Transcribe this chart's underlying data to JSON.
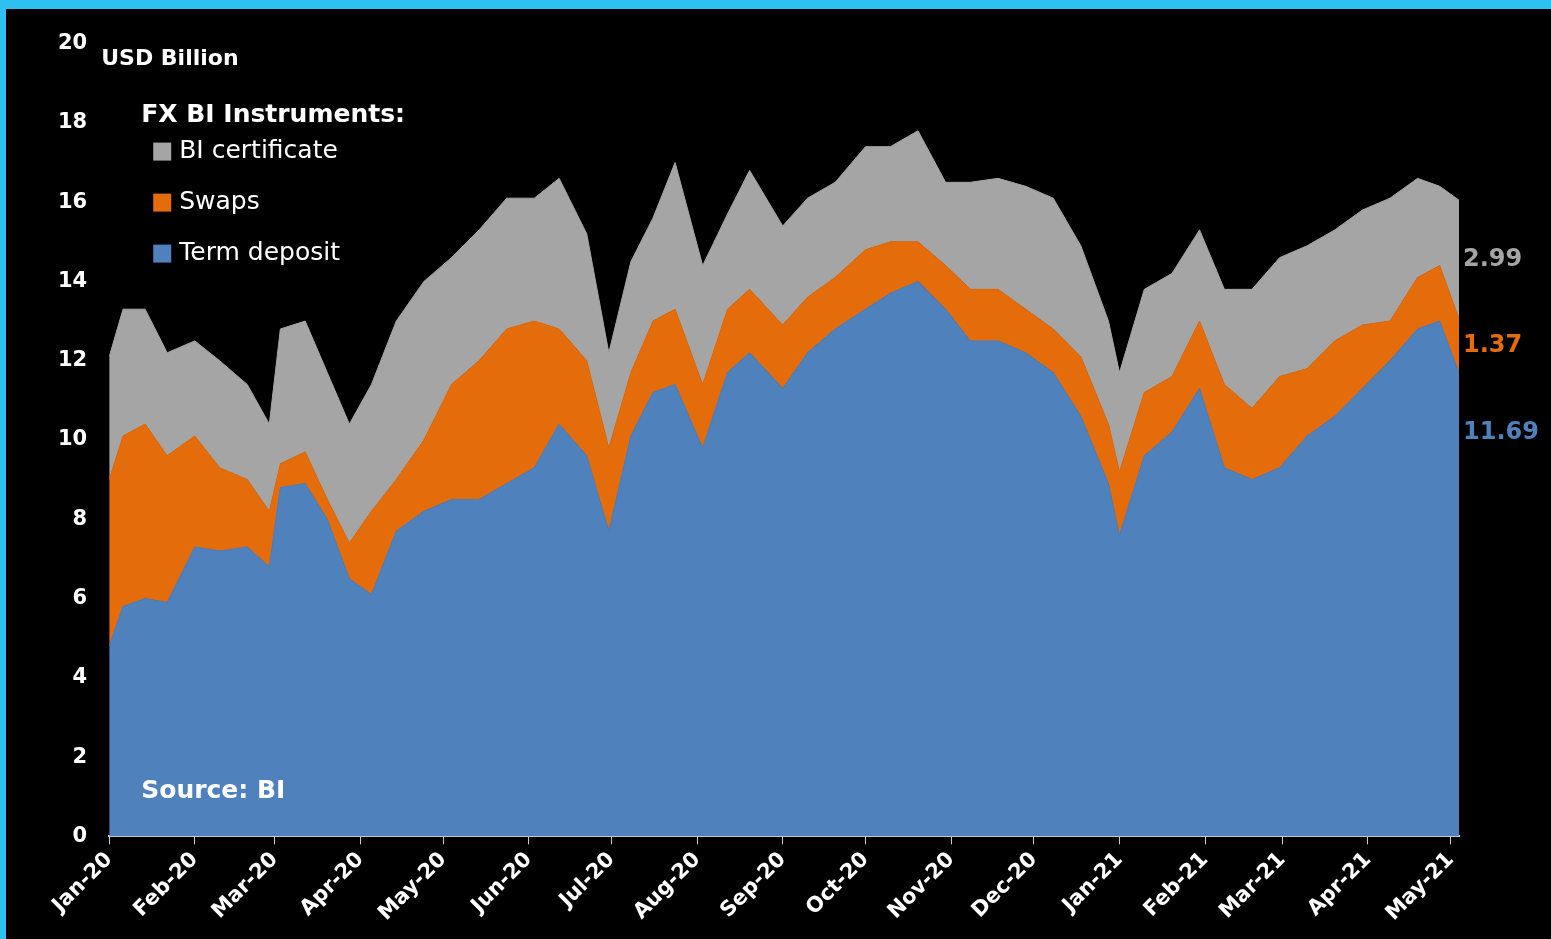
{
  "chart_data": {
    "type": "area",
    "stacked": true,
    "ylabel": "USD Billion",
    "legend_title": "FX BI Instruments:",
    "legend": "top left",
    "grid": false,
    "annotations": [
      "Source: BI"
    ],
    "xlim": [
      "2020-01-01",
      "2021-05-04"
    ],
    "ylim": [
      0,
      20
    ],
    "yticks": [
      0,
      2,
      4,
      6,
      8,
      10,
      12,
      14,
      16,
      18,
      20
    ],
    "xticks": [
      {
        "value": "2020-01-01",
        "label": "Jan-20"
      },
      {
        "value": "2020-02-01",
        "label": "Feb-20"
      },
      {
        "value": "2020-03-01",
        "label": "Mar-20"
      },
      {
        "value": "2020-04-01",
        "label": "Apr-20"
      },
      {
        "value": "2020-05-01",
        "label": "May-20"
      },
      {
        "value": "2020-06-01",
        "label": "Jun-20"
      },
      {
        "value": "2020-07-01",
        "label": "Jul-20"
      },
      {
        "value": "2020-08-01",
        "label": "Aug-20"
      },
      {
        "value": "2020-09-01",
        "label": "Sep-20"
      },
      {
        "value": "2020-10-01",
        "label": "Oct-20"
      },
      {
        "value": "2020-11-01",
        "label": "Nov-20"
      },
      {
        "value": "2020-12-01",
        "label": "Dec-20"
      },
      {
        "value": "2021-01-01",
        "label": "Jan-21"
      },
      {
        "value": "2021-02-01",
        "label": "Feb-21"
      },
      {
        "value": "2021-03-01",
        "label": "Mar-21"
      },
      {
        "value": "2021-04-01",
        "label": "Apr-21"
      },
      {
        "value": "2021-05-01",
        "label": "May-21"
      }
    ],
    "x": [
      "2020-01-01",
      "2020-01-06",
      "2020-01-14",
      "2020-01-22",
      "2020-02-01",
      "2020-02-10",
      "2020-02-20",
      "2020-02-28",
      "2020-03-03",
      "2020-03-12",
      "2020-03-20",
      "2020-03-28",
      "2020-04-05",
      "2020-04-14",
      "2020-04-24",
      "2020-05-04",
      "2020-05-14",
      "2020-05-24",
      "2020-06-03",
      "2020-06-12",
      "2020-06-22",
      "2020-06-30",
      "2020-07-08",
      "2020-07-16",
      "2020-07-24",
      "2020-08-03",
      "2020-08-12",
      "2020-08-20",
      "2020-09-01",
      "2020-09-10",
      "2020-09-20",
      "2020-10-01",
      "2020-10-10",
      "2020-10-20",
      "2020-10-30",
      "2020-11-08",
      "2020-11-18",
      "2020-11-28",
      "2020-12-08",
      "2020-12-18",
      "2020-12-28",
      "2021-01-01",
      "2021-01-10",
      "2021-01-20",
      "2021-01-30",
      "2021-02-08",
      "2021-02-18",
      "2021-02-28",
      "2021-03-10",
      "2021-03-20",
      "2021-03-30",
      "2021-04-09",
      "2021-04-19",
      "2021-04-27",
      "2021-05-04"
    ],
    "series": [
      {
        "name": "Term deposit",
        "color": "#4f81bd",
        "values": [
          4.8,
          5.8,
          6.0,
          5.9,
          7.3,
          7.2,
          7.3,
          6.8,
          8.8,
          8.9,
          8.0,
          6.5,
          6.1,
          7.7,
          8.2,
          8.5,
          8.5,
          8.9,
          9.3,
          10.4,
          9.6,
          7.7,
          10.1,
          11.2,
          11.4,
          9.8,
          11.7,
          12.2,
          11.3,
          12.2,
          12.8,
          13.3,
          13.7,
          14.0,
          13.3,
          12.5,
          12.5,
          12.2,
          11.7,
          10.6,
          8.9,
          7.6,
          9.6,
          10.2,
          11.3,
          9.3,
          9.0,
          9.3,
          10.1,
          10.6,
          11.3,
          12.0,
          12.8,
          13.0,
          11.69
        ],
        "value_labels": [
          null,
          null,
          null,
          null,
          null,
          null,
          null,
          null,
          null,
          null,
          null,
          null,
          null,
          null,
          null,
          null,
          null,
          null,
          null,
          null,
          null,
          null,
          null,
          null,
          null,
          null,
          null,
          null,
          null,
          null,
          null,
          null,
          null,
          null,
          null,
          null,
          null,
          null,
          null,
          null,
          null,
          null,
          null,
          null,
          null,
          null,
          null,
          null,
          null,
          null,
          null,
          null,
          null,
          null,
          "11.69"
        ]
      },
      {
        "name": "Swaps",
        "color": "#e46c0a",
        "values": [
          4.2,
          4.3,
          4.4,
          3.7,
          2.8,
          2.1,
          1.7,
          1.4,
          0.6,
          0.8,
          0.5,
          0.9,
          2.1,
          1.3,
          1.8,
          2.9,
          3.5,
          3.9,
          3.7,
          2.4,
          2.4,
          2.1,
          1.6,
          1.8,
          1.9,
          1.6,
          1.6,
          1.6,
          1.6,
          1.4,
          1.3,
          1.5,
          1.3,
          1.0,
          1.1,
          1.3,
          1.3,
          1.1,
          1.1,
          1.5,
          1.5,
          1.6,
          1.6,
          1.4,
          1.7,
          2.1,
          1.8,
          2.3,
          1.7,
          1.9,
          1.6,
          1.0,
          1.3,
          1.4,
          1.37
        ],
        "value_labels": [
          null,
          null,
          null,
          null,
          null,
          null,
          null,
          null,
          null,
          null,
          null,
          null,
          null,
          null,
          null,
          null,
          null,
          null,
          null,
          null,
          null,
          null,
          null,
          null,
          null,
          null,
          null,
          null,
          null,
          null,
          null,
          null,
          null,
          null,
          null,
          null,
          null,
          null,
          null,
          null,
          null,
          null,
          null,
          null,
          null,
          null,
          null,
          null,
          null,
          null,
          null,
          null,
          null,
          null,
          "1.37"
        ]
      },
      {
        "name": "BI certificate",
        "color": "#a5a5a5",
        "values": [
          3.1,
          3.2,
          2.9,
          2.6,
          2.4,
          2.7,
          2.4,
          2.2,
          3.4,
          3.3,
          3.2,
          3.0,
          3.2,
          4.0,
          4.0,
          3.2,
          3.3,
          3.3,
          3.1,
          3.8,
          3.2,
          2.4,
          2.8,
          2.6,
          3.7,
          3.0,
          2.4,
          3.0,
          2.5,
          2.5,
          2.4,
          2.6,
          2.4,
          2.8,
          2.1,
          2.7,
          2.8,
          3.1,
          3.3,
          2.8,
          2.6,
          2.5,
          2.6,
          2.6,
          2.3,
          2.4,
          3.0,
          3.0,
          3.1,
          2.8,
          2.9,
          3.1,
          2.5,
          2.0,
          2.99
        ],
        "value_labels": [
          null,
          null,
          null,
          null,
          null,
          null,
          null,
          null,
          null,
          null,
          null,
          null,
          null,
          null,
          null,
          null,
          null,
          null,
          null,
          null,
          null,
          null,
          null,
          null,
          null,
          null,
          null,
          null,
          null,
          null,
          null,
          null,
          null,
          null,
          null,
          null,
          null,
          null,
          null,
          null,
          null,
          null,
          null,
          null,
          null,
          null,
          null,
          null,
          null,
          null,
          null,
          null,
          null,
          null,
          "2.99"
        ]
      }
    ]
  }
}
